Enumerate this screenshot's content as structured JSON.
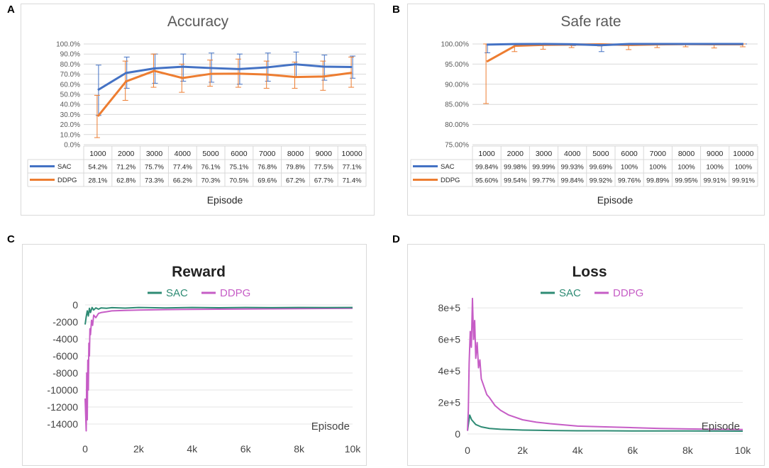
{
  "panels": [
    {
      "letter": "A"
    },
    {
      "letter": "B"
    },
    {
      "letter": "C"
    },
    {
      "letter": "D"
    }
  ],
  "colors": {
    "sac_excel": "#4472c4",
    "ddpg_excel": "#ed7d31",
    "sac_line": "#2e8b74",
    "ddpg_line": "#c65dc6",
    "grid": "#d9d9d9",
    "text": "#595959"
  },
  "chart_data": [
    {
      "type": "line",
      "title": "Accuracy",
      "xlabel": "Episode",
      "categories": [
        "1000",
        "2000",
        "3000",
        "4000",
        "5000",
        "6000",
        "7000",
        "8000",
        "9000",
        "10000"
      ],
      "ylim": [
        0,
        100
      ],
      "y_ticks": [
        0,
        10,
        20,
        30,
        40,
        50,
        60,
        70,
        80,
        90,
        100
      ],
      "y_tick_labels": [
        "0.0%",
        "10.0%",
        "20.0%",
        "30.0%",
        "40.0%",
        "50.0%",
        "60.0%",
        "70.0%",
        "80.0%",
        "90.0%",
        "100.0%"
      ],
      "series": [
        {
          "name": "SAC",
          "values": [
            54.2,
            71.2,
            75.7,
            77.4,
            76.1,
            75.1,
            76.8,
            79.8,
            77.5,
            77.1
          ],
          "labels": [
            "54.2%",
            "71.2%",
            "75.7%",
            "77.4%",
            "76.1%",
            "75.1%",
            "76.8%",
            "79.8%",
            "77.5%",
            "77.1%"
          ],
          "err_low": [
            29,
            56,
            61,
            63,
            62,
            60,
            63,
            67,
            64,
            66
          ],
          "err_high": [
            79,
            87,
            90,
            90,
            91,
            90,
            91,
            92,
            89,
            88
          ]
        },
        {
          "name": "DDPG",
          "values": [
            28.1,
            62.8,
            73.3,
            66.2,
            70.3,
            70.5,
            69.6,
            67.2,
            67.7,
            71.4
          ],
          "labels": [
            "28.1%",
            "62.8%",
            "73.3%",
            "66.2%",
            "70.3%",
            "70.5%",
            "69.6%",
            "67.2%",
            "67.7%",
            "71.4%"
          ],
          "err_low": [
            7,
            44,
            57,
            52,
            58,
            57,
            56,
            56,
            54,
            57
          ],
          "err_high": [
            49,
            83,
            90,
            80,
            84,
            85,
            83,
            82,
            83,
            87
          ]
        }
      ]
    },
    {
      "type": "line",
      "title": "Safe rate",
      "xlabel": "Episode",
      "categories": [
        "1000",
        "2000",
        "3000",
        "4000",
        "5000",
        "6000",
        "7000",
        "8000",
        "9000",
        "10000"
      ],
      "ylim": [
        75,
        100
      ],
      "y_ticks": [
        75,
        80,
        85,
        90,
        95,
        100
      ],
      "y_tick_labels": [
        "75.00%",
        "80.00%",
        "85.00%",
        "90.00%",
        "95.00%",
        "100.00%"
      ],
      "series": [
        {
          "name": "SAC",
          "values": [
            99.84,
            99.98,
            99.99,
            99.93,
            99.69,
            100,
            100,
            100,
            100,
            100
          ],
          "labels": [
            "99.84%",
            "99.98%",
            "99.99%",
            "99.93%",
            "99.69%",
            "100%",
            "100%",
            "100%",
            "100%",
            "100%"
          ],
          "err_low": [
            97.8,
            99.9,
            99.9,
            99.6,
            98.1,
            100,
            100,
            100,
            100,
            100
          ],
          "err_high": [
            100,
            100,
            100,
            100,
            100,
            100,
            100,
            100,
            100,
            100
          ]
        },
        {
          "name": "DDPG",
          "values": [
            95.6,
            99.54,
            99.77,
            99.84,
            99.92,
            99.76,
            99.89,
            99.95,
            99.91,
            99.91
          ],
          "labels": [
            "95.60%",
            "99.54%",
            "99.77%",
            "99.84%",
            "99.92%",
            "99.76%",
            "99.89%",
            "99.95%",
            "99.91%",
            "99.91%"
          ],
          "err_low": [
            85.2,
            98.1,
            98.7,
            99.1,
            99.5,
            98.6,
            99.1,
            99.3,
            99.0,
            99.3
          ],
          "err_high": [
            100,
            100,
            100,
            100,
            100,
            100,
            100,
            100,
            100,
            100
          ]
        }
      ]
    },
    {
      "type": "line",
      "title": "Reward",
      "xlabel": "Episode",
      "xlim": [
        0,
        10000
      ],
      "ylim": [
        -15000,
        0
      ],
      "x_ticks": [
        0,
        2000,
        4000,
        6000,
        8000,
        10000
      ],
      "x_tick_labels": [
        "0",
        "2k",
        "4k",
        "6k",
        "8k",
        "10k"
      ],
      "y_ticks": [
        0,
        -2000,
        -4000,
        -6000,
        -8000,
        -10000,
        -12000,
        -14000
      ],
      "y_tick_labels": [
        "0",
        "-2000",
        "-4000",
        "-6000",
        "-8000",
        "-10000",
        "-12000",
        "-14000"
      ],
      "series": [
        {
          "name": "SAC",
          "x": [
            0,
            40,
            80,
            120,
            160,
            200,
            260,
            320,
            400,
            500,
            600,
            800,
            1000,
            1500,
            2000,
            3000,
            4000,
            5000,
            6000,
            7000,
            8000,
            9000,
            10000
          ],
          "values": [
            -2300,
            -1400,
            -700,
            -1300,
            -400,
            -900,
            -300,
            -600,
            -350,
            -500,
            -350,
            -400,
            -320,
            -380,
            -300,
            -350,
            -300,
            -330,
            -300,
            -320,
            -300,
            -310,
            -300
          ]
        },
        {
          "name": "DDPG",
          "x": [
            0,
            40,
            60,
            80,
            100,
            120,
            140,
            160,
            180,
            200,
            240,
            280,
            320,
            400,
            500,
            600,
            800,
            1000,
            1500,
            2000,
            3000,
            4000,
            5000,
            6000,
            7000,
            8000,
            9000,
            10000
          ],
          "values": [
            -11000,
            -14800,
            -8000,
            -13500,
            -6500,
            -10000,
            -4500,
            -6000,
            -2800,
            -3500,
            -1800,
            -2400,
            -1200,
            -1500,
            -1000,
            -900,
            -800,
            -700,
            -650,
            -600,
            -550,
            -520,
            -500,
            -480,
            -460,
            -440,
            -420,
            -400
          ]
        }
      ]
    },
    {
      "type": "line",
      "title": "Loss",
      "xlabel": "Episode",
      "xlim": [
        0,
        10000
      ],
      "ylim": [
        0,
        900000
      ],
      "x_ticks": [
        0,
        2000,
        4000,
        6000,
        8000,
        10000
      ],
      "x_tick_labels": [
        "0",
        "2k",
        "4k",
        "6k",
        "8k",
        "10k"
      ],
      "y_ticks": [
        0,
        200000,
        400000,
        600000,
        800000
      ],
      "y_tick_labels": [
        "0",
        "2e+5",
        "4e+5",
        "6e+5",
        "8e+5"
      ],
      "series": [
        {
          "name": "SAC",
          "x": [
            0,
            80,
            150,
            300,
            500,
            800,
            1200,
            2000,
            3000,
            4000,
            5000,
            6000,
            8000,
            10000
          ],
          "values": [
            20000,
            120000,
            90000,
            60000,
            45000,
            35000,
            30000,
            25000,
            22000,
            20000,
            20000,
            19000,
            19000,
            18000
          ]
        },
        {
          "name": "DDPG",
          "x": [
            0,
            30,
            60,
            100,
            140,
            180,
            220,
            260,
            300,
            350,
            400,
            450,
            500,
            600,
            700,
            800,
            1000,
            1200,
            1500,
            2000,
            2500,
            3000,
            4000,
            5000,
            6000,
            7000,
            8000,
            9000,
            10000
          ],
          "values": [
            20000,
            150000,
            450000,
            650000,
            550000,
            860000,
            600000,
            720000,
            480000,
            580000,
            420000,
            470000,
            350000,
            300000,
            250000,
            230000,
            180000,
            150000,
            120000,
            90000,
            75000,
            65000,
            50000,
            45000,
            40000,
            35000,
            32000,
            30000,
            28000
          ]
        }
      ]
    }
  ]
}
